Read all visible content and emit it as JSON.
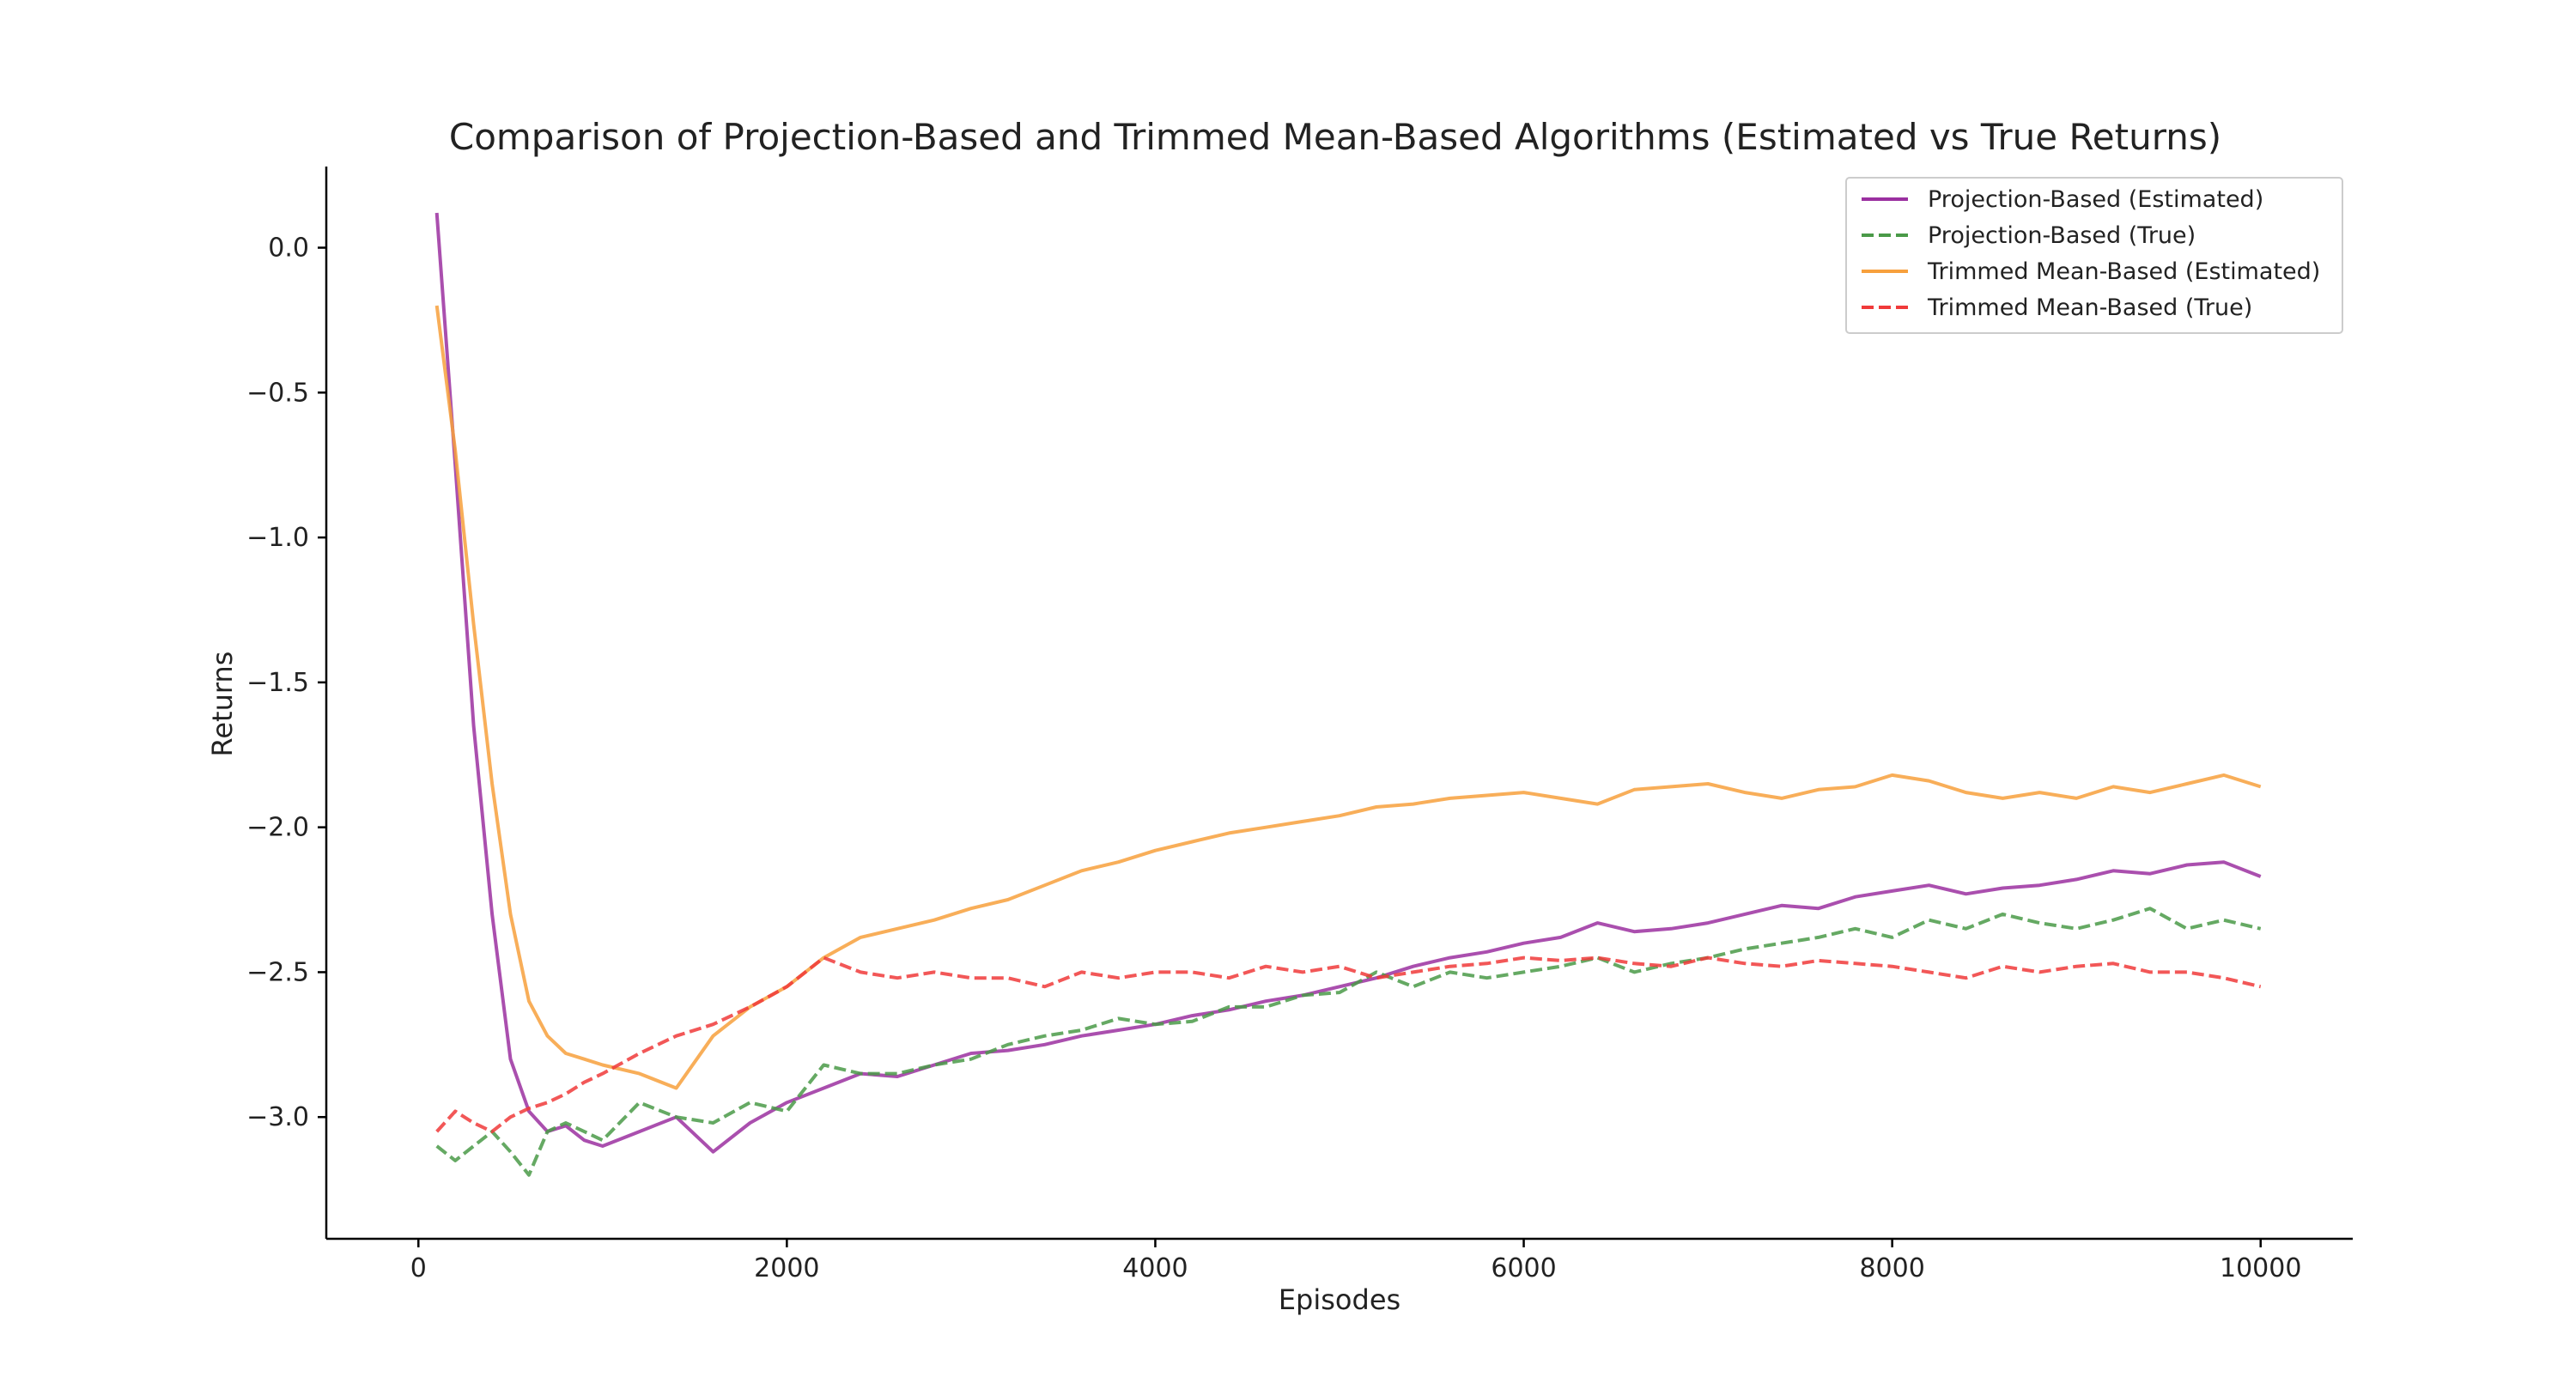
{
  "chart_data": {
    "type": "line",
    "title": "Comparison of Projection-Based and Trimmed Mean-Based Algorithms (Estimated vs True Returns)",
    "xlabel": "Episodes",
    "ylabel": "Returns",
    "xlim": [
      -500,
      10500
    ],
    "ylim": [
      -3.42,
      0.28
    ],
    "xticks": [
      0,
      2000,
      4000,
      6000,
      8000,
      10000
    ],
    "xtick_labels": [
      "0",
      "2000",
      "4000",
      "6000",
      "8000",
      "10000"
    ],
    "yticks": [
      0.0,
      -0.5,
      -1.0,
      -1.5,
      -2.0,
      -2.5,
      -3.0
    ],
    "ytick_labels": [
      "0.0",
      "−0.5",
      "−1.0",
      "−1.5",
      "−2.0",
      "−2.5",
      "−3.0"
    ],
    "grid": false,
    "legend_position": "top-right",
    "x": [
      100,
      200,
      300,
      400,
      500,
      600,
      700,
      800,
      900,
      1000,
      1200,
      1400,
      1600,
      1800,
      2000,
      2200,
      2400,
      2600,
      2800,
      3000,
      3200,
      3400,
      3600,
      3800,
      4000,
      4200,
      4400,
      4600,
      4800,
      5000,
      5200,
      5400,
      5600,
      5800,
      6000,
      6200,
      6400,
      6600,
      6800,
      7000,
      7200,
      7400,
      7600,
      7800,
      8000,
      8200,
      8400,
      8600,
      8800,
      9000,
      9200,
      9400,
      9600,
      9800,
      10000
    ],
    "series": [
      {
        "name": "Projection-Based (Estimated)",
        "color": "#9b30a0",
        "dash": "solid",
        "values": [
          0.12,
          -0.75,
          -1.65,
          -2.3,
          -2.8,
          -2.98,
          -3.05,
          -3.03,
          -3.08,
          -3.1,
          -3.05,
          -3.0,
          -3.12,
          -3.02,
          -2.95,
          -2.9,
          -2.85,
          -2.86,
          -2.82,
          -2.78,
          -2.77,
          -2.75,
          -2.72,
          -2.7,
          -2.68,
          -2.65,
          -2.63,
          -2.6,
          -2.58,
          -2.55,
          -2.52,
          -2.48,
          -2.45,
          -2.43,
          -2.4,
          -2.38,
          -2.33,
          -2.36,
          -2.35,
          -2.33,
          -2.3,
          -2.27,
          -2.28,
          -2.24,
          -2.22,
          -2.2,
          -2.23,
          -2.21,
          -2.2,
          -2.18,
          -2.15,
          -2.16,
          -2.13,
          -2.12,
          -2.17
        ]
      },
      {
        "name": "Projection-Based (True)",
        "color": "#4a9a48",
        "dash": "dashed",
        "values": [
          -3.1,
          -3.15,
          -3.1,
          -3.05,
          -3.12,
          -3.2,
          -3.05,
          -3.02,
          -3.05,
          -3.08,
          -2.95,
          -3.0,
          -3.02,
          -2.95,
          -2.98,
          -2.82,
          -2.85,
          -2.85,
          -2.82,
          -2.8,
          -2.75,
          -2.72,
          -2.7,
          -2.66,
          -2.68,
          -2.67,
          -2.62,
          -2.62,
          -2.58,
          -2.57,
          -2.5,
          -2.55,
          -2.5,
          -2.52,
          -2.5,
          -2.48,
          -2.45,
          -2.5,
          -2.47,
          -2.45,
          -2.42,
          -2.4,
          -2.38,
          -2.35,
          -2.38,
          -2.32,
          -2.35,
          -2.3,
          -2.33,
          -2.35,
          -2.32,
          -2.28,
          -2.35,
          -2.32,
          -2.35
        ]
      },
      {
        "name": "Trimmed Mean-Based (Estimated)",
        "color": "#f7a03c",
        "dash": "solid",
        "values": [
          -0.2,
          -0.7,
          -1.3,
          -1.85,
          -2.3,
          -2.6,
          -2.72,
          -2.78,
          -2.8,
          -2.82,
          -2.85,
          -2.9,
          -2.72,
          -2.62,
          -2.55,
          -2.45,
          -2.38,
          -2.35,
          -2.32,
          -2.28,
          -2.25,
          -2.2,
          -2.15,
          -2.12,
          -2.08,
          -2.05,
          -2.02,
          -2.0,
          -1.98,
          -1.96,
          -1.93,
          -1.92,
          -1.9,
          -1.89,
          -1.88,
          -1.9,
          -1.92,
          -1.87,
          -1.86,
          -1.85,
          -1.88,
          -1.9,
          -1.87,
          -1.86,
          -1.82,
          -1.84,
          -1.88,
          -1.9,
          -1.88,
          -1.9,
          -1.86,
          -1.88,
          -1.85,
          -1.82,
          -1.86
        ]
      },
      {
        "name": "Trimmed Mean-Based (True)",
        "color": "#f03a3a",
        "dash": "dashed",
        "values": [
          -3.05,
          -2.98,
          -3.02,
          -3.05,
          -3.0,
          -2.97,
          -2.95,
          -2.92,
          -2.88,
          -2.85,
          -2.78,
          -2.72,
          -2.68,
          -2.62,
          -2.55,
          -2.45,
          -2.5,
          -2.52,
          -2.5,
          -2.52,
          -2.52,
          -2.55,
          -2.5,
          -2.52,
          -2.5,
          -2.5,
          -2.52,
          -2.48,
          -2.5,
          -2.48,
          -2.52,
          -2.5,
          -2.48,
          -2.47,
          -2.45,
          -2.46,
          -2.45,
          -2.47,
          -2.48,
          -2.45,
          -2.47,
          -2.48,
          -2.46,
          -2.47,
          -2.48,
          -2.5,
          -2.52,
          -2.48,
          -2.5,
          -2.48,
          -2.47,
          -2.5,
          -2.5,
          -2.52,
          -2.55
        ]
      }
    ]
  }
}
